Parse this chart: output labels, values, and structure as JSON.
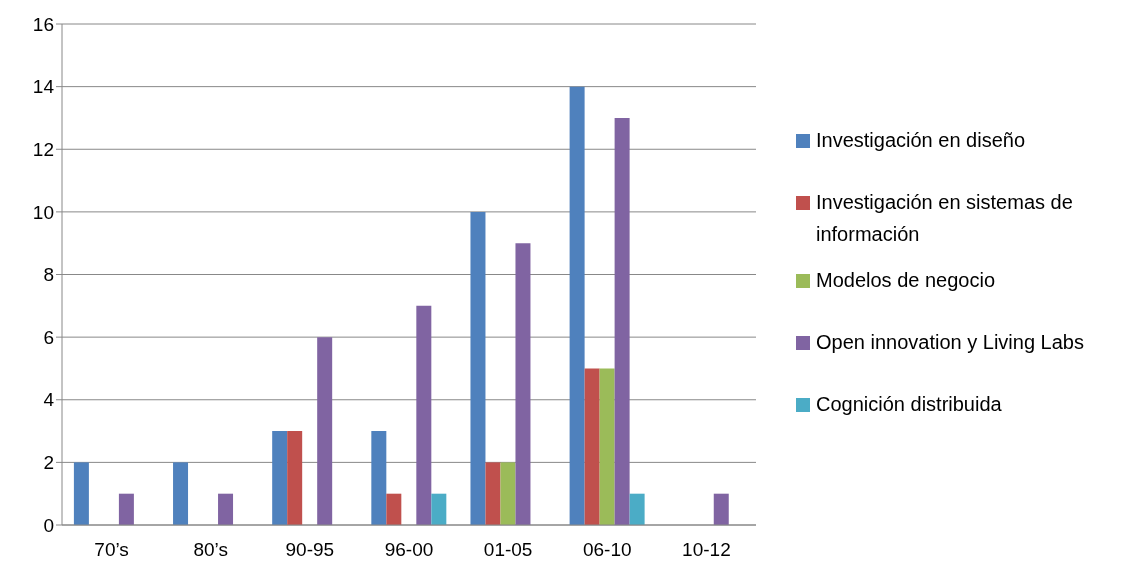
{
  "chart_data": {
    "type": "bar",
    "categories": [
      "70’s",
      "80’s",
      "90-95",
      "96-00",
      "01-05",
      "06-10",
      "10-12"
    ],
    "series": [
      {
        "name": "Investigación en diseño",
        "color": "#4f81bd",
        "values": [
          2,
          2,
          3,
          3,
          10,
          14,
          0
        ]
      },
      {
        "name": "Investigación en sistemas de información",
        "color": "#c0504d",
        "values": [
          0,
          0,
          3,
          1,
          2,
          5,
          0
        ]
      },
      {
        "name": "Modelos de negocio",
        "color": "#9bbb59",
        "values": [
          0,
          0,
          0,
          0,
          2,
          5,
          0
        ]
      },
      {
        "name": "Open innovation y Living Labs",
        "color": "#8064a2",
        "values": [
          1,
          1,
          6,
          7,
          9,
          13,
          1
        ]
      },
      {
        "name": "Cognición distribuida",
        "color": "#4bacc6",
        "values": [
          0,
          0,
          0,
          1,
          0,
          1,
          0
        ]
      }
    ],
    "ylim": [
      0,
      16
    ],
    "yticks": [
      0,
      2,
      4,
      6,
      8,
      10,
      12,
      14,
      16
    ],
    "grid": "y",
    "legend": "right"
  }
}
